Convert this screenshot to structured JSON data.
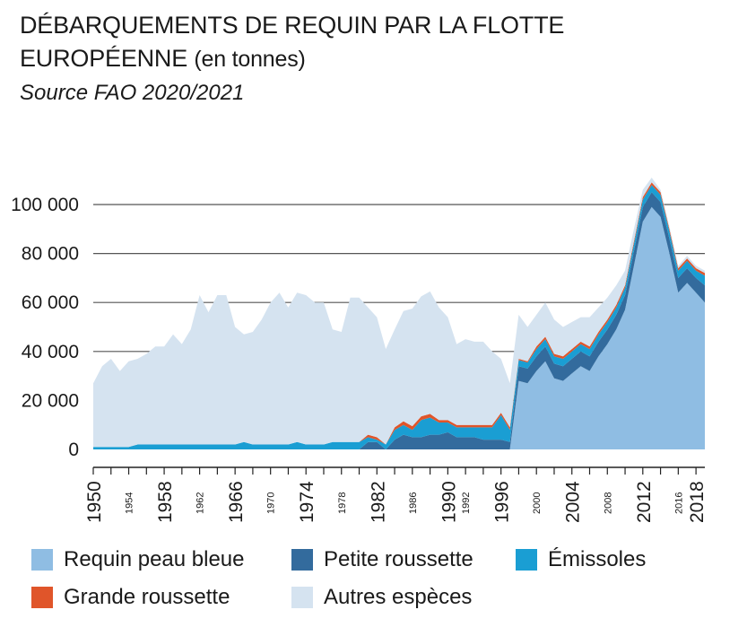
{
  "title": {
    "line1": "DÉBARQUEMENTS DE REQUIN PAR LA FLOTTE",
    "line2_main": "EUROPÉENNE",
    "line2_sub": "(en tonnes)"
  },
  "source": "Source FAO 2020/2021",
  "chart_data": {
    "type": "area",
    "stacked": true,
    "title": "DÉBARQUEMENTS DE REQUIN PAR LA FLOTTE EUROPÉENNE (en tonnes)",
    "xlabel": "",
    "ylabel": "",
    "ylim": [
      0,
      110000
    ],
    "yticks": [
      0,
      20000,
      40000,
      60000,
      80000,
      100000
    ],
    "ytick_labels": [
      "0",
      "20 000",
      "40 000",
      "60 000",
      "80 000",
      "100 000"
    ],
    "xticks_major": [
      "1950",
      "1958",
      "1966",
      "1974",
      "1982",
      "1990",
      "1996",
      "2004",
      "2012",
      "2018"
    ],
    "xticks_minor": [
      "1954",
      "1962",
      "1970",
      "1978",
      "1986",
      "1992",
      "2000",
      "2008",
      "2016"
    ],
    "grid": "horizontal",
    "legend_position": "bottom",
    "x": [
      1950,
      1951,
      1952,
      1953,
      1954,
      1955,
      1956,
      1957,
      1958,
      1959,
      1960,
      1961,
      1962,
      1963,
      1964,
      1965,
      1966,
      1967,
      1968,
      1969,
      1970,
      1971,
      1972,
      1973,
      1974,
      1975,
      1976,
      1977,
      1978,
      1979,
      1980,
      1981,
      1982,
      1983,
      1984,
      1985,
      1986,
      1987,
      1988,
      1989,
      1990,
      1991,
      1992,
      1993,
      1994,
      1995,
      1996,
      1997,
      1998,
      1999,
      2000,
      2001,
      2002,
      2003,
      2004,
      2005,
      2006,
      2007,
      2008,
      2009,
      2010,
      2011,
      2012,
      2013,
      2014,
      2015,
      2016,
      2017,
      2018,
      2019
    ],
    "series": [
      {
        "name": "Requin peau bleue",
        "color": "#8fbde3",
        "values": [
          0,
          0,
          0,
          0,
          0,
          0,
          0,
          0,
          0,
          0,
          0,
          0,
          0,
          0,
          0,
          0,
          0,
          0,
          0,
          0,
          0,
          0,
          0,
          0,
          0,
          0,
          0,
          0,
          0,
          0,
          0,
          0,
          0,
          0,
          0,
          0,
          0,
          0,
          0,
          0,
          0,
          0,
          0,
          0,
          0,
          0,
          0,
          0,
          28000,
          27000,
          32000,
          36000,
          29000,
          28000,
          31000,
          34000,
          32000,
          38000,
          43000,
          49000,
          57000,
          75000,
          93000,
          99000,
          95000,
          80000,
          64000,
          68000,
          64000,
          60000
        ]
      },
      {
        "name": "Petite roussette",
        "color": "#336b9d",
        "values": [
          0,
          0,
          0,
          0,
          0,
          0,
          0,
          0,
          0,
          0,
          0,
          0,
          0,
          0,
          0,
          0,
          0,
          0,
          0,
          0,
          0,
          0,
          0,
          0,
          0,
          0,
          0,
          0,
          0,
          0,
          0,
          3000,
          3000,
          0,
          4000,
          6000,
          5000,
          5000,
          6000,
          6000,
          7000,
          5000,
          5000,
          5000,
          4000,
          4000,
          4000,
          3000,
          6000,
          6000,
          6000,
          6000,
          6000,
          6000,
          6000,
          6000,
          6000,
          6000,
          6000,
          6000,
          6000,
          6000,
          6000,
          6000,
          6000,
          6000,
          6000,
          6000,
          6000,
          7000
        ]
      },
      {
        "name": "Émissoles",
        "color": "#1a9ed3",
        "values": [
          1000,
          1000,
          1000,
          1000,
          1000,
          2000,
          2000,
          2000,
          2000,
          2000,
          2000,
          2000,
          2000,
          2000,
          2000,
          2000,
          2000,
          3000,
          2000,
          2000,
          2000,
          2000,
          2000,
          3000,
          2000,
          2000,
          2000,
          3000,
          3000,
          3000,
          3000,
          2000,
          1000,
          2000,
          4000,
          4000,
          3000,
          7000,
          7000,
          5000,
          4000,
          4000,
          4000,
          4000,
          5000,
          5000,
          10000,
          5000,
          2500,
          2500,
          3000,
          3000,
          3000,
          3000,
          3000,
          3000,
          3000,
          3000,
          3000,
          3000,
          3000,
          3000,
          3000,
          3000,
          3000,
          3000,
          3000,
          3000,
          3000,
          4000
        ]
      },
      {
        "name": "Grande roussette",
        "color": "#e0552a",
        "values": [
          0,
          0,
          0,
          0,
          0,
          0,
          0,
          0,
          0,
          0,
          0,
          0,
          0,
          0,
          0,
          0,
          0,
          0,
          0,
          0,
          0,
          0,
          0,
          0,
          0,
          0,
          0,
          0,
          0,
          0,
          0,
          1000,
          1000,
          0,
          1000,
          1500,
          1500,
          1500,
          1500,
          1000,
          1000,
          1000,
          1000,
          1000,
          1000,
          1000,
          1000,
          1000,
          500,
          500,
          1000,
          1000,
          1000,
          1000,
          1000,
          1000,
          1000,
          1000,
          1000,
          1000,
          1000,
          1000,
          1000,
          1000,
          1000,
          1000,
          1000,
          1000,
          1000,
          1000
        ]
      },
      {
        "name": "Autres espèces",
        "color": "#d5e3f0",
        "values": [
          26000,
          33000,
          36000,
          31000,
          35000,
          35000,
          37000,
          40000,
          40000,
          45000,
          41000,
          47000,
          61000,
          54000,
          61000,
          61000,
          48000,
          44000,
          46000,
          51000,
          58000,
          62000,
          56000,
          61000,
          61000,
          58000,
          58000,
          46000,
          45000,
          59000,
          59000,
          52000,
          49000,
          39000,
          40000,
          45000,
          48000,
          49000,
          50000,
          46000,
          42000,
          33000,
          35000,
          34000,
          34000,
          30000,
          22000,
          18000,
          18000,
          14000,
          13000,
          14000,
          14000,
          12000,
          11000,
          10000,
          12000,
          10000,
          9000,
          8000,
          6000,
          5000,
          3000,
          2000,
          1000,
          1000,
          1000,
          1000,
          1000,
          1000
        ]
      }
    ]
  }
}
